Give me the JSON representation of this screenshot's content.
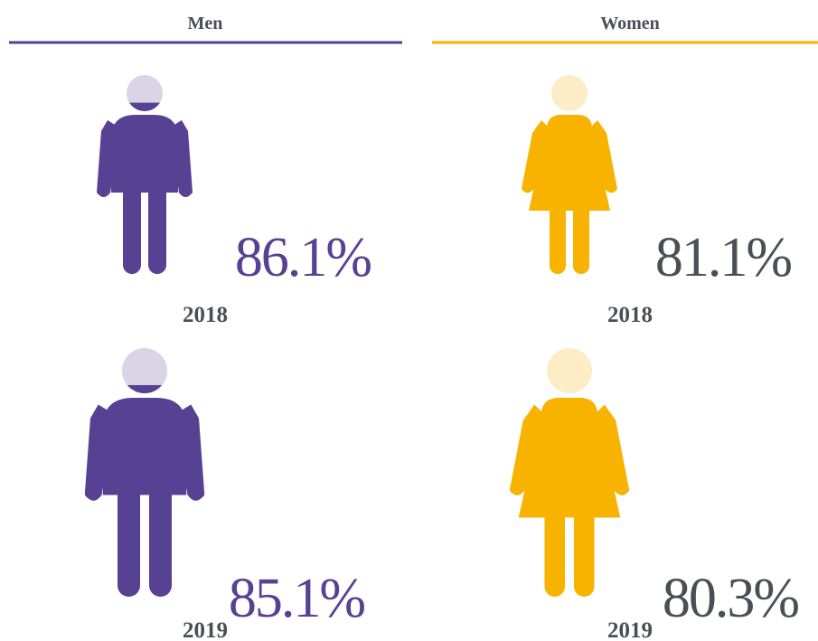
{
  "chart_data": {
    "type": "pictogram",
    "categories": [
      "2018",
      "2019"
    ],
    "series": [
      {
        "name": "Men",
        "shape": "man",
        "color": "#574193",
        "empty_color": "#d9d4e6",
        "label_color": "#574193",
        "values": [
          86.1,
          85.1
        ],
        "value_labels": [
          "86.1%",
          "85.1%"
        ]
      },
      {
        "name": "Women",
        "shape": "woman",
        "color": "#f8b200",
        "empty_color": "#fdedc6",
        "label_color": "#4a4f55",
        "values": [
          81.1,
          80.3
        ],
        "value_labels": [
          "81.1%",
          "80.3%"
        ]
      }
    ]
  }
}
